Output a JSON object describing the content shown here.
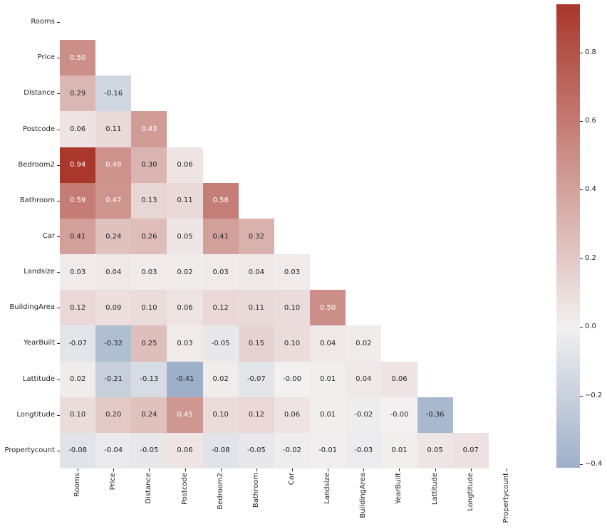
{
  "chart_data": {
    "type": "heatmap",
    "title": "",
    "subtitle": "",
    "xlabel": "",
    "ylabel": "",
    "mask": "upper triangle including diagonal",
    "labels": [
      "Rooms",
      "Price",
      "Distance",
      "Postcode",
      "Bedroom2",
      "Bathroom",
      "Car",
      "Landsize",
      "BuildingArea",
      "YearBuilt",
      "Lattitude",
      "Longtitude",
      "Propertycount"
    ],
    "x_tick_labels": [
      "Rooms",
      "Price",
      "Distance",
      "Postcode",
      "Bedroom2",
      "Bathroom",
      "Car",
      "Landsize",
      "BuildingArea",
      "YearBuilt",
      "Lattitude",
      "Longtitude",
      "Propertycount"
    ],
    "y_tick_labels": [
      "Rooms",
      "Price",
      "Distance",
      "Postcode",
      "Bedroom2",
      "Bathroom",
      "Car",
      "Landsize",
      "BuildingArea",
      "YearBuilt",
      "Lattitude",
      "Longtitude",
      "Propertycount"
    ],
    "matrix_lower": [
      [],
      [
        "0.50"
      ],
      [
        "0.29",
        "-0.16"
      ],
      [
        "0.06",
        "0.11",
        "0.43"
      ],
      [
        "0.94",
        "0.48",
        "0.30",
        "0.06"
      ],
      [
        "0.59",
        "0.47",
        "0.13",
        "0.11",
        "0.58"
      ],
      [
        "0.41",
        "0.24",
        "0.26",
        "0.05",
        "0.41",
        "0.32"
      ],
      [
        "0.03",
        "0.04",
        "0.03",
        "0.02",
        "0.03",
        "0.04",
        "0.03"
      ],
      [
        "0.12",
        "0.09",
        "0.10",
        "0.06",
        "0.12",
        "0.11",
        "0.10",
        "0.50"
      ],
      [
        "-0.07",
        "-0.32",
        "0.25",
        "0.03",
        "-0.05",
        "0.15",
        "0.10",
        "0.04",
        "0.02"
      ],
      [
        "0.02",
        "-0.21",
        "-0.13",
        "-0.41",
        "0.02",
        "-0.07",
        "-0.00",
        "0.01",
        "0.04",
        "0.06"
      ],
      [
        "0.10",
        "0.20",
        "0.24",
        "0.45",
        "0.10",
        "0.12",
        "0.06",
        "0.01",
        "-0.02",
        "-0.00",
        "-0.36"
      ],
      [
        "-0.08",
        "-0.04",
        "-0.05",
        "0.06",
        "-0.08",
        "-0.05",
        "-0.02",
        "-0.01",
        "-0.03",
        "0.01",
        "0.05",
        "0.07"
      ]
    ],
    "colorbar": {
      "ticks": [
        "0.8",
        "0.6",
        "0.4",
        "0.2",
        "0.0",
        "−0.2",
        "−0.4"
      ],
      "tick_values": [
        0.8,
        0.6,
        0.4,
        0.2,
        0.0,
        -0.2,
        -0.4
      ],
      "vmin": -0.41,
      "vmax": 0.94,
      "center": 0.0
    },
    "colors": {
      "positive": "#a9372c",
      "center": "#f2f0f0",
      "negative": "#315d97"
    },
    "legend_position": "right"
  }
}
